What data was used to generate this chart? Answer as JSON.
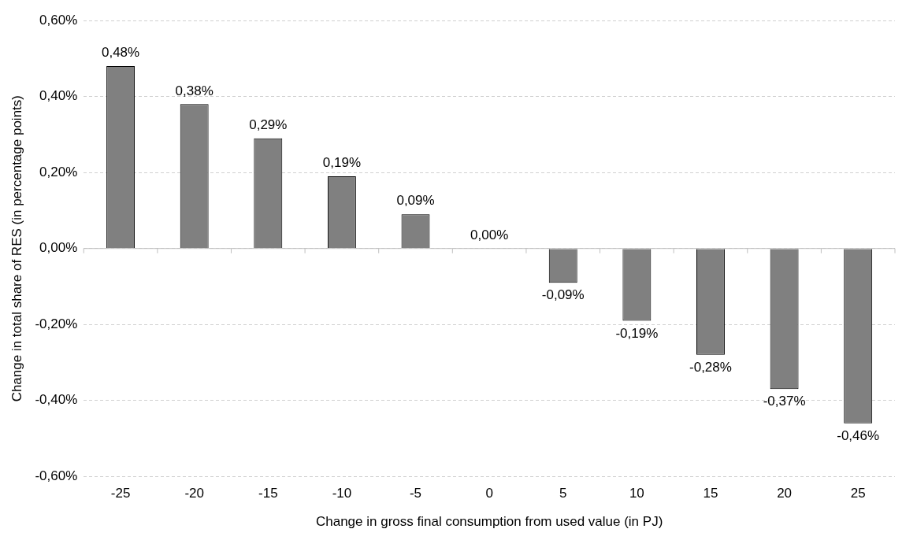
{
  "chart_data": {
    "type": "bar",
    "xlabel": "Change in gross final consumption from used value (in PJ)",
    "ylabel": "Change in total share of RES (in percentage points)",
    "categories": [
      "-25",
      "-20",
      "-15",
      "-10",
      "-5",
      "0",
      "5",
      "10",
      "15",
      "20",
      "25"
    ],
    "values": [
      0.48,
      0.38,
      0.29,
      0.19,
      0.09,
      0,
      -0.09,
      -0.19,
      -0.28,
      -0.37,
      -0.46
    ],
    "value_labels": [
      "0,48%",
      "0,38%",
      "0,29%",
      "0,19%",
      "0,09%",
      "0,00%",
      "-0,09%",
      "-0,19%",
      "-0,28%",
      "-0,37%",
      "-0,46%"
    ],
    "color": "#808080",
    "ylim": [
      -0.6,
      0.6
    ],
    "yticks": [
      {
        "value": -0.6,
        "label": "-0,60%"
      },
      {
        "value": -0.4,
        "label": "-0,40%"
      },
      {
        "value": -0.2,
        "label": "-0,20%"
      },
      {
        "value": 0,
        "label": "0,00%"
      },
      {
        "value": 0.2,
        "label": "0,20%"
      },
      {
        "value": 0.4,
        "label": "0,40%"
      },
      {
        "value": 0.6,
        "label": "0,60%"
      }
    ],
    "grid": "y",
    "legend": false
  }
}
